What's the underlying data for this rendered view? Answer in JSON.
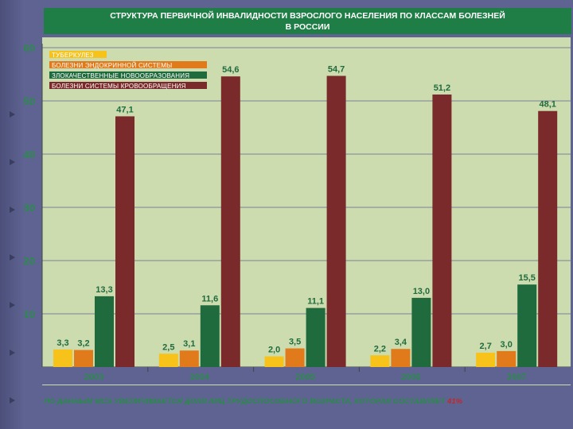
{
  "title": {
    "line1": "СТРУКТУРА ПЕРВИЧНОЙ ИНВАЛИДНОСТИ ВЗРОСЛОГО НАСЕЛЕНИЯ ПО КЛАССАМ БОЛЕЗНЕЙ",
    "line2": "В РОССИИ"
  },
  "footer": {
    "text": "ПО ДАННЫМ МСЭ УВЕЛИЧИВАЕТСЯ ДОЛЯ ЛИЦ ТРУДОСПОСОБНОГО ВОЗРАСТА, КОТОРАЯ СОСТАВЛЯЕТ",
    "percent": "41%"
  },
  "chart_data": {
    "type": "bar",
    "categories": [
      "2003",
      "2004",
      "2005",
      "2006",
      "2007"
    ],
    "ylim": [
      0,
      60
    ],
    "yticks": [
      "10",
      "20",
      "30",
      "40",
      "50",
      "60"
    ],
    "grid": true,
    "legend_position": "top-left",
    "series": [
      {
        "name": "ТУБЕРКУЛЕЗ",
        "color": "#f7c21a",
        "values": [
          3.3,
          2.5,
          2.0,
          2.2,
          2.7
        ],
        "labels": [
          "3,3",
          "2,5",
          "2,0",
          "2,2",
          "2,7"
        ]
      },
      {
        "name": "БОЛЕЗНИ ЭНДОКРИННОЙ СИСТЕМЫ",
        "color": "#e07a1a",
        "values": [
          3.2,
          3.1,
          3.5,
          3.4,
          3.0
        ],
        "labels": [
          "3,2",
          "3,1",
          "3,5",
          "3,4",
          "3,0"
        ]
      },
      {
        "name": "ЗЛОКАЧЕСТВЕННЫЕ НОВООБРАЗОВАНИЯ",
        "color": "#1f6b3e",
        "values": [
          13.3,
          11.6,
          11.1,
          13.0,
          15.5
        ],
        "labels": [
          "13,3",
          "11,6",
          "11,1",
          "13,0",
          "15,5"
        ]
      },
      {
        "name": "БОЛЕЗНИ СИСТЕМЫ КРОВООБРАЩЕНИЯ",
        "color": "#7a2a2a",
        "values": [
          47.1,
          54.6,
          54.7,
          51.2,
          48.1
        ],
        "labels": [
          "47,1",
          "54,6",
          "54,7",
          "51,2",
          "48,1"
        ]
      }
    ],
    "label_color": "#1f6b3e",
    "legend_label_color": "#ffffff"
  }
}
